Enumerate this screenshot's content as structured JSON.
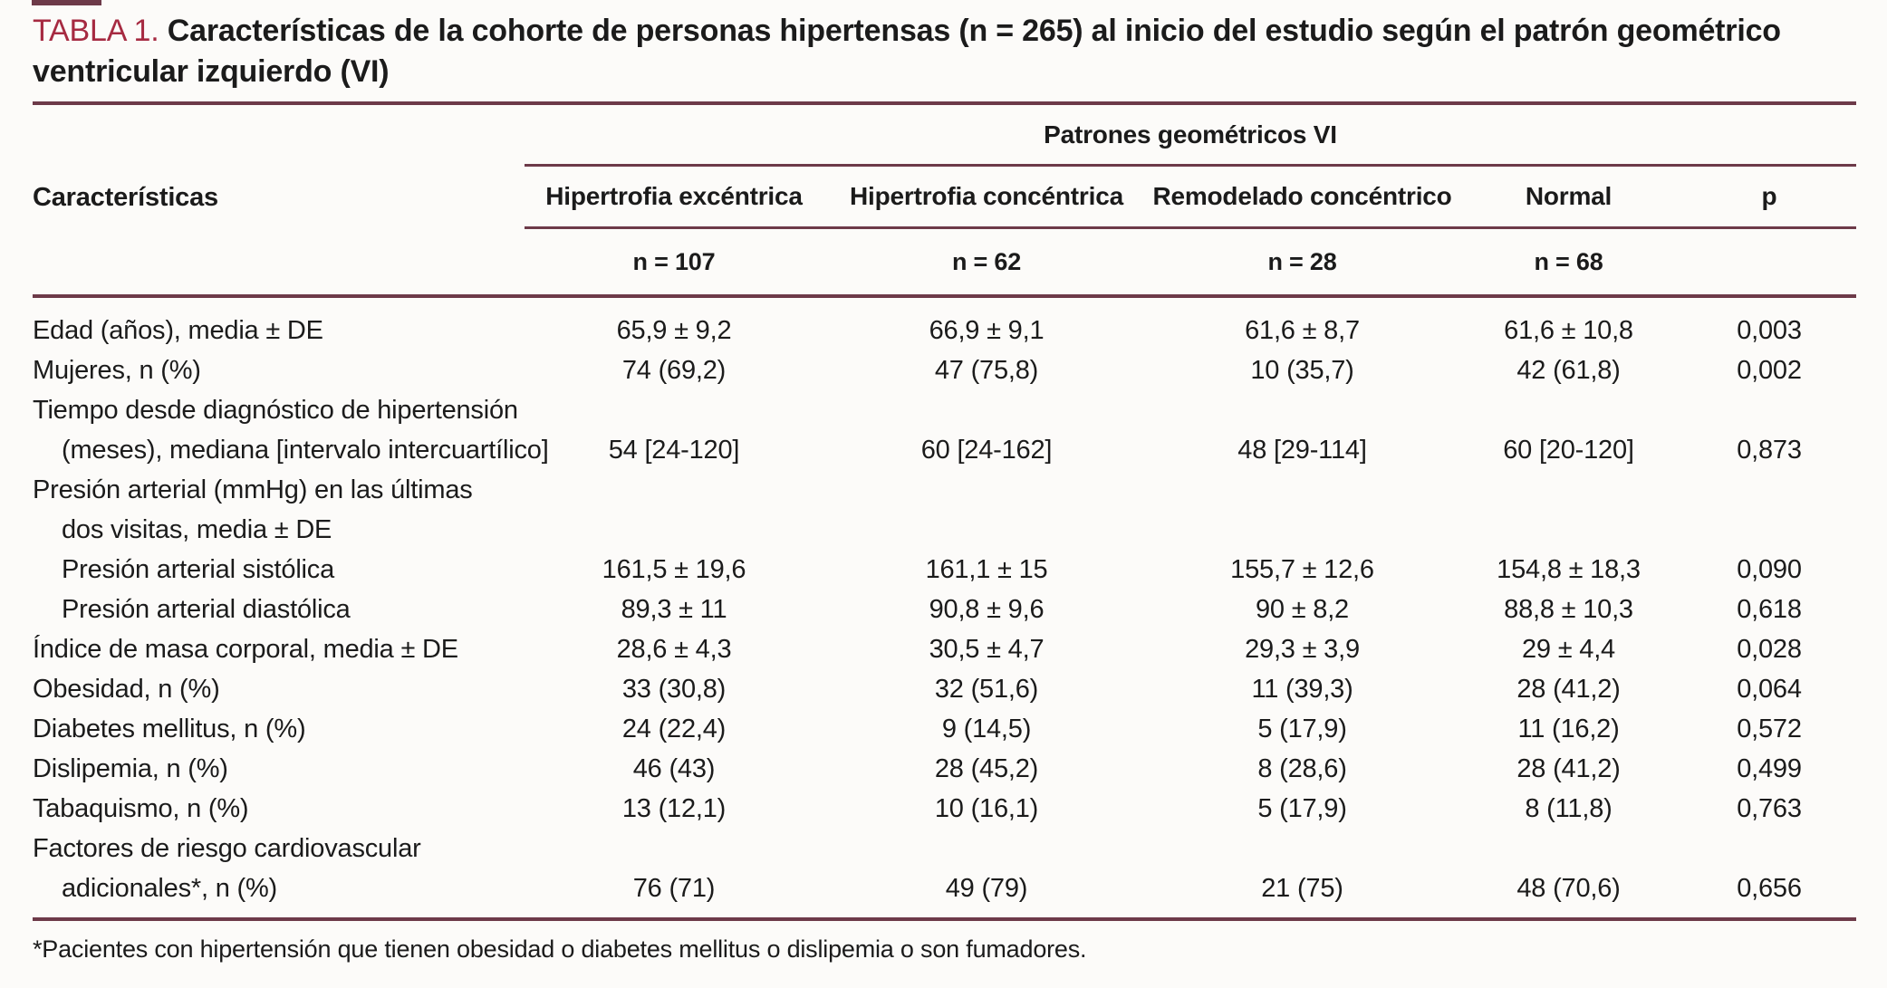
{
  "page": {
    "background": "#fcfbf9",
    "accent_red": "#a62a41",
    "rule_color": "#6d3a49",
    "text_color": "#1b1b1b"
  },
  "title": {
    "label": "TABLA 1.",
    "text": "Características de la cohorte de personas hipertensas (n = 265) al inicio del estudio según el patrón geométrico ventricular izquierdo (VI)"
  },
  "table": {
    "group_header": "Patrones geométricos VI",
    "row_header": "Características",
    "columns": [
      {
        "label": "Hipertrofia excéntrica",
        "n": "n = 107"
      },
      {
        "label": "Hipertrofia concéntrica",
        "n": "n = 62"
      },
      {
        "label": "Remodelado concéntrico",
        "n": "n = 28"
      },
      {
        "label": "Normal",
        "n": "n = 68"
      },
      {
        "label": "p",
        "n": ""
      }
    ],
    "rows": [
      {
        "label": "Edad (años), media ± DE",
        "indent": false,
        "values": [
          "65,9 ± 9,2",
          "66,9 ± 9,1",
          "61,6 ± 8,7",
          "61,6 ± 10,8",
          "0,003"
        ]
      },
      {
        "label": "Mujeres, n (%)",
        "indent": false,
        "values": [
          "74 (69,2)",
          "47 (75,8)",
          "10 (35,7)",
          "42 (61,8)",
          "0,002"
        ]
      },
      {
        "label": "Tiempo desde diagnóstico de hipertensión",
        "indent": false,
        "values": null
      },
      {
        "label": "(meses), mediana [intervalo intercuartílico]",
        "indent": true,
        "values": [
          "54 [24-120]",
          "60 [24-162]",
          "48 [29-114]",
          "60 [20-120]",
          "0,873"
        ]
      },
      {
        "label": "Presión arterial (mmHg) en las últimas",
        "indent": false,
        "values": null
      },
      {
        "label": "dos visitas, media ± DE",
        "indent": true,
        "values": null
      },
      {
        "label": "Presión arterial sistólica",
        "indent": true,
        "values": [
          "161,5 ± 19,6",
          "161,1 ± 15",
          "155,7 ± 12,6",
          "154,8 ± 18,3",
          "0,090"
        ]
      },
      {
        "label": "Presión arterial diastólica",
        "indent": true,
        "values": [
          "89,3 ± 11",
          "90,8 ± 9,6",
          "90 ± 8,2",
          "88,8 ± 10,3",
          "0,618"
        ]
      },
      {
        "label": "Índice de masa corporal, media ± DE",
        "indent": false,
        "values": [
          "28,6 ± 4,3",
          "30,5 ± 4,7",
          "29,3 ± 3,9",
          "29 ± 4,4",
          "0,028"
        ]
      },
      {
        "label": "Obesidad, n (%)",
        "indent": false,
        "values": [
          "33 (30,8)",
          "32 (51,6)",
          "11 (39,3)",
          "28 (41,2)",
          "0,064"
        ]
      },
      {
        "label": "Diabetes mellitus, n (%)",
        "indent": false,
        "values": [
          "24 (22,4)",
          "9 (14,5)",
          "5 (17,9)",
          "11 (16,2)",
          "0,572"
        ]
      },
      {
        "label": "Dislipemia, n (%)",
        "indent": false,
        "values": [
          "46 (43)",
          "28 (45,2)",
          "8 (28,6)",
          "28 (41,2)",
          "0,499"
        ]
      },
      {
        "label": "Tabaquismo, n (%)",
        "indent": false,
        "values": [
          "13 (12,1)",
          "10 (16,1)",
          "5 (17,9)",
          "8 (11,8)",
          "0,763"
        ]
      },
      {
        "label": "Factores de riesgo cardiovascular",
        "indent": false,
        "values": null
      },
      {
        "label": "adicionales*, n (%)",
        "indent": true,
        "values": [
          "76 (71)",
          "49 (79)",
          "21 (75)",
          "48 (70,6)",
          "0,656"
        ]
      }
    ]
  },
  "footnote": "*Pacientes con hipertensión que tienen obesidad o diabetes mellitus o dislipemia o son fumadores."
}
